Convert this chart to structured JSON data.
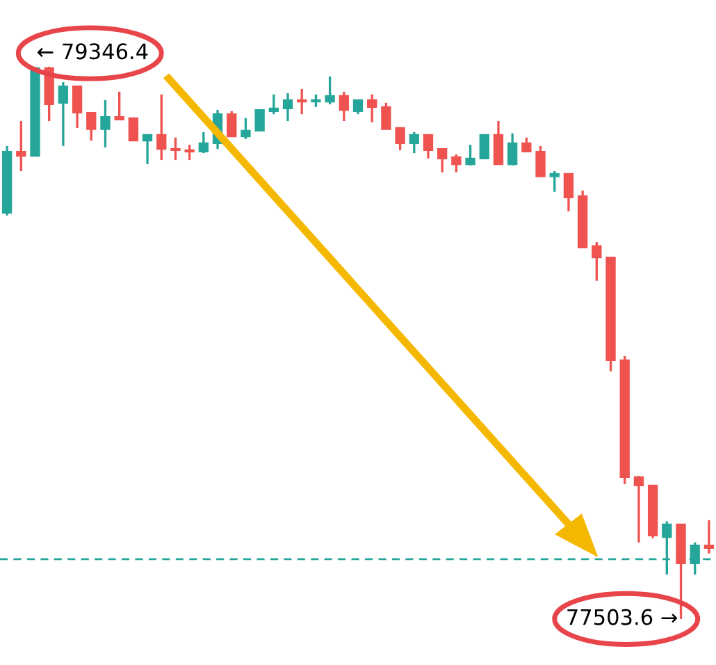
{
  "chart_data": {
    "type": "candlestick",
    "categories": [
      null,
      null,
      null,
      null,
      null,
      null,
      null,
      null,
      null,
      null,
      null,
      null,
      null,
      null,
      null,
      null,
      null,
      null,
      null,
      null,
      null,
      null,
      null,
      null,
      null,
      null,
      null,
      null,
      null,
      null,
      null,
      null,
      null,
      null,
      null,
      null,
      null,
      null,
      null,
      null,
      null,
      null,
      null,
      null,
      null,
      null,
      null,
      null,
      null,
      null,
      null
    ],
    "ohlc": [
      [
        78859,
        79082,
        78850,
        79063
      ],
      [
        79063,
        79165,
        78998,
        79049
      ],
      [
        79049,
        79346.4,
        79049,
        79342
      ],
      [
        79342,
        79346.4,
        79165,
        79221
      ],
      [
        79226,
        79295,
        79082,
        79281
      ],
      [
        79281,
        79281,
        79142,
        79193
      ],
      [
        79193,
        79193,
        79100,
        79138
      ],
      [
        79138,
        79235,
        79077,
        79179
      ],
      [
        79179,
        79263,
        79170,
        79170
      ],
      [
        79175,
        79175,
        79100,
        79100
      ],
      [
        79100,
        79119,
        79021,
        79119
      ],
      [
        79119,
        79254,
        79035,
        79072
      ],
      [
        79072,
        79110,
        79035,
        79068
      ],
      [
        79068,
        79086,
        79035,
        79063
      ],
      [
        79063,
        79128,
        79058,
        79091
      ],
      [
        79091,
        79202,
        79072,
        79188
      ],
      [
        79188,
        79198,
        79114,
        79114
      ],
      [
        79114,
        79175,
        79105,
        79133
      ],
      [
        79133,
        79202,
        79133,
        79202
      ],
      [
        79198,
        79254,
        79188,
        79207
      ],
      [
        79207,
        79258,
        79165,
        79235
      ],
      [
        79235,
        79272,
        79188,
        79230
      ],
      [
        79230,
        79254,
        79212,
        79235
      ],
      [
        79230,
        79314,
        79221,
        79249
      ],
      [
        79249,
        79263,
        79165,
        79202
      ],
      [
        79198,
        79235,
        79188,
        79235
      ],
      [
        79235,
        79254,
        79161,
        79212
      ],
      [
        79212,
        79226,
        79138,
        79138
      ],
      [
        79142,
        79142,
        79068,
        79091
      ],
      [
        79091,
        79128,
        79058,
        79119
      ],
      [
        79119,
        79119,
        79040,
        79068
      ],
      [
        79072,
        79072,
        78994,
        79040
      ],
      [
        79045,
        79054,
        78994,
        79021
      ],
      [
        79021,
        79086,
        79017,
        79040
      ],
      [
        79040,
        79119,
        79040,
        79119
      ],
      [
        79119,
        79165,
        79021,
        79021
      ],
      [
        79021,
        79124,
        79017,
        79091
      ],
      [
        79091,
        79110,
        79063,
        79063
      ],
      [
        79063,
        79082,
        78980,
        78980
      ],
      [
        78980,
        78998,
        78929,
        78989
      ],
      [
        78989,
        78989,
        78864,
        78910
      ],
      [
        78915,
        78933,
        78743,
        78743
      ],
      [
        78748,
        78761,
        78632,
        78710
      ],
      [
        78710,
        78710,
        78330,
        78367
      ],
      [
        78367,
        78381,
        77954,
        77977
      ],
      [
        77977,
        77981,
        77759,
        77949
      ],
      [
        77949,
        77949,
        77773,
        77782
      ],
      [
        77777,
        77829,
        77652,
        77819
      ],
      [
        77819,
        77819,
        77503.6,
        77689
      ],
      [
        77689,
        77759,
        77652,
        77749
      ],
      [
        77749,
        77833,
        77722,
        77740
      ]
    ],
    "colors": [
      "#26a69a",
      "#ef5350",
      "#26a69a",
      "#ef5350",
      "#26a69a",
      "#ef5350",
      "#ef5350",
      "#26a69a",
      "#ef5350",
      "#ef5350",
      "#26a69a",
      "#ef5350",
      "#ef5350",
      "#ef5350",
      "#26a69a",
      "#26a69a",
      "#ef5350",
      "#26a69a",
      "#26a69a",
      "#26a69a",
      "#26a69a",
      "#ef5350",
      "#26a69a",
      "#26a69a",
      "#ef5350",
      "#26a69a",
      "#ef5350",
      "#ef5350",
      "#ef5350",
      "#26a69a",
      "#ef5350",
      "#ef5350",
      "#ef5350",
      "#26a69a",
      "#26a69a",
      "#ef5350",
      "#26a69a",
      "#ef5350",
      "#ef5350",
      "#26a69a",
      "#ef5350",
      "#ef5350",
      "#ef5350",
      "#ef5350",
      "#ef5350",
      "#ef5350",
      "#ef5350",
      "#26a69a",
      "#ef5350",
      "#26a69a",
      "#ef5350"
    ],
    "ylim": [
      77350,
      79569
    ],
    "ref_lines": [
      {
        "axis": "y",
        "value": 77703,
        "color": "#26a69a",
        "line_style": "dashed"
      }
    ],
    "annotations": [
      "← 79346.4",
      "77503.6 →"
    ]
  }
}
